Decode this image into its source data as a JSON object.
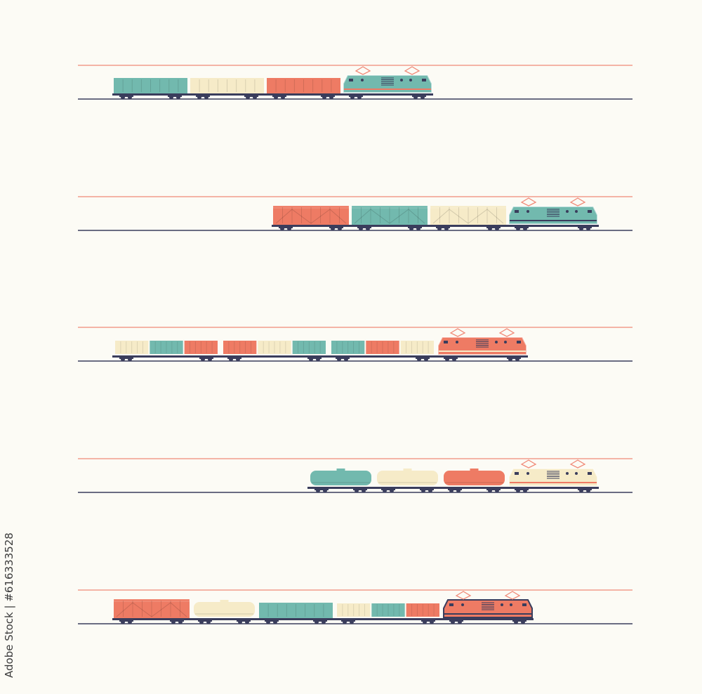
{
  "credit": "Adobe Stock | #616333528",
  "colors": {
    "background": "#fcfbf5",
    "teal": "#72b9ae",
    "cream": "#f6ebc8",
    "coral": "#ee7b64",
    "navy": "#3a3d5c",
    "wire": "#f08a78"
  },
  "trains": [
    {
      "cars": [
        {
          "type": "open",
          "color": "teal"
        },
        {
          "type": "open",
          "color": "cream"
        },
        {
          "type": "open",
          "color": "coral"
        },
        {
          "type": "loco",
          "color": "teal",
          "stripe": "coral"
        }
      ]
    },
    {
      "cars": [
        {
          "type": "box",
          "color": "coral"
        },
        {
          "type": "box",
          "color": "teal"
        },
        {
          "type": "box",
          "color": "cream"
        },
        {
          "type": "loco",
          "color": "teal",
          "stripe": "navy"
        }
      ]
    },
    {
      "cars": [
        {
          "type": "flat",
          "containers": [
            "cream",
            "teal",
            "coral"
          ]
        },
        {
          "type": "flat",
          "containers": [
            "coral",
            "cream",
            "teal"
          ]
        },
        {
          "type": "flat",
          "containers": [
            "teal",
            "coral",
            "cream"
          ]
        },
        {
          "type": "loco",
          "color": "coral",
          "stripe": "cream"
        }
      ]
    },
    {
      "cars": [
        {
          "type": "tank",
          "color": "teal"
        },
        {
          "type": "tank",
          "color": "cream"
        },
        {
          "type": "tank",
          "color": "coral"
        },
        {
          "type": "loco",
          "color": "cream",
          "stripe": "coral"
        }
      ]
    },
    {
      "cars": [
        {
          "type": "box",
          "color": "coral"
        },
        {
          "type": "tank",
          "color": "cream"
        },
        {
          "type": "open",
          "color": "teal"
        },
        {
          "type": "flat",
          "containers": [
            "cream",
            "teal",
            "coral"
          ]
        },
        {
          "type": "loco",
          "color": "coral",
          "stripe": "navy"
        }
      ]
    }
  ]
}
